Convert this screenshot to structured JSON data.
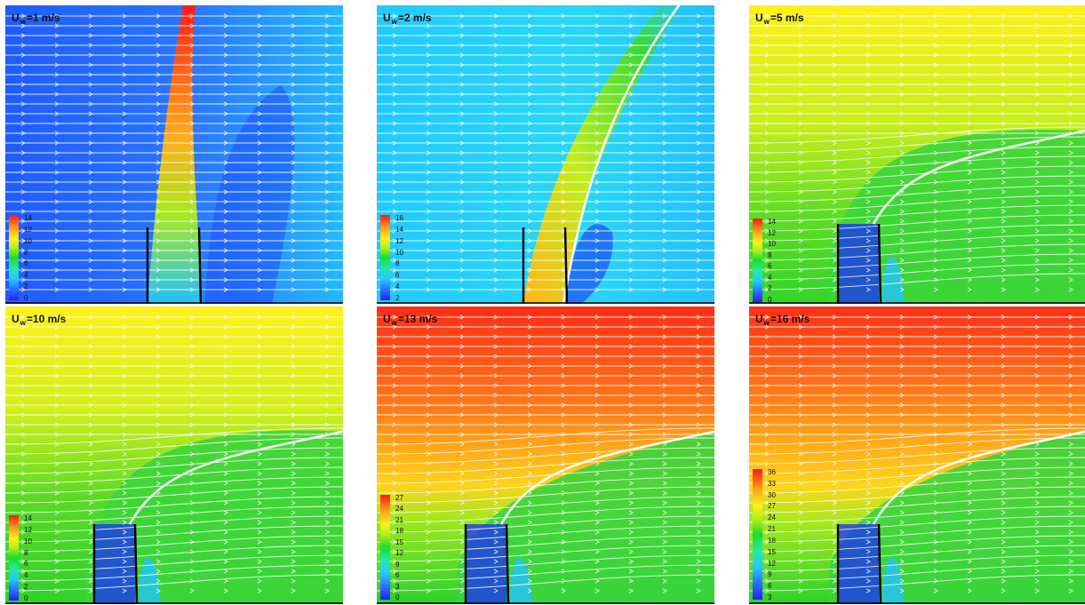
{
  "panels": [
    {
      "title_prefix": "U",
      "title_sub": "w",
      "title_suffix": "=1 m/s",
      "ticks": [
        "14",
        "12",
        "10",
        "8",
        "6",
        "4",
        "2",
        "0"
      ],
      "scheme": "uw1"
    },
    {
      "title_prefix": "U",
      "title_sub": "w",
      "title_suffix": "=2 m/s",
      "ticks": [
        "16",
        "14",
        "12",
        "10",
        "8",
        "6",
        "4",
        "2"
      ],
      "scheme": "uw2"
    },
    {
      "title_prefix": "U",
      "title_sub": "w",
      "title_suffix": "=5 m/s",
      "ticks": [
        "14",
        "12",
        "10",
        "8",
        "6",
        "4",
        "2",
        "0"
      ],
      "scheme": "uw5"
    },
    {
      "title_prefix": "U",
      "title_sub": "w",
      "title_suffix": "=10 m/s",
      "ticks": [
        "14",
        "12",
        "10",
        "8",
        "6",
        "4",
        "2",
        "0"
      ],
      "scheme": "uw10"
    },
    {
      "title_prefix": "U",
      "title_sub": "w",
      "title_suffix": "=13 m/s",
      "ticks": [
        "27",
        "24",
        "21",
        "18",
        "15",
        "12",
        "9",
        "6",
        "3",
        "0"
      ],
      "scheme": "uw13"
    },
    {
      "title_prefix": "U",
      "title_sub": "w",
      "title_suffix": "=16 m/s",
      "ticks": [
        "36",
        "33",
        "30",
        "27",
        "24",
        "21",
        "18",
        "15",
        "12",
        "9",
        "6",
        "3"
      ],
      "scheme": "uw16"
    }
  ],
  "colors": {
    "low": "#2a1fff",
    "mid": "#19de2a",
    "high": "#ff1717",
    "streamline": "#ffffff",
    "wall": "#000000"
  }
}
